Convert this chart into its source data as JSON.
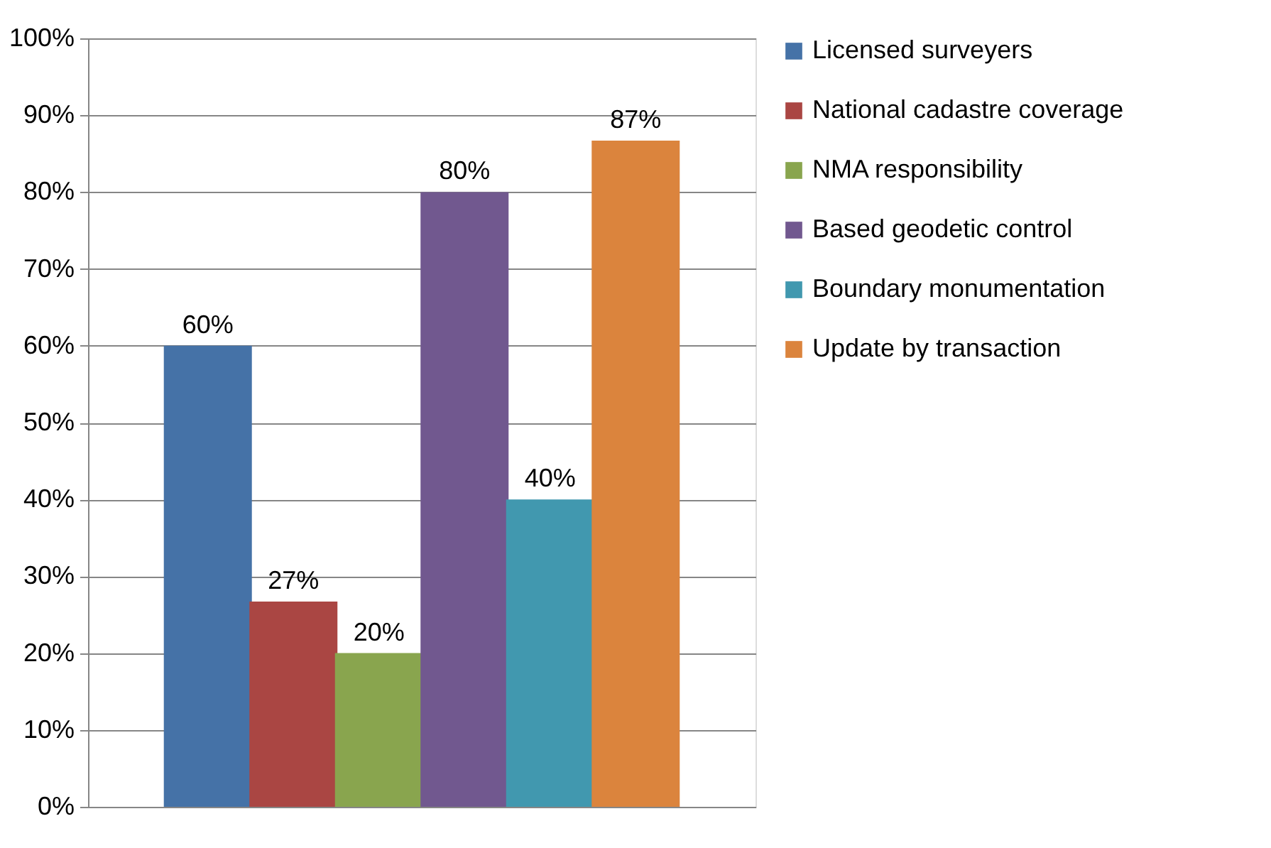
{
  "chart_data": {
    "type": "bar",
    "categories": [
      null
    ],
    "series": [
      {
        "name": "Licensed surveyers",
        "color": "#4572a7",
        "values": [
          60
        ],
        "value_labels": [
          "60%"
        ]
      },
      {
        "name": "National cadastre coverage",
        "color": "#aa4643",
        "values": [
          26.7
        ],
        "value_labels": [
          "27%"
        ]
      },
      {
        "name": "NMA responsibility",
        "color": "#89a54e",
        "values": [
          20
        ],
        "value_labels": [
          "20%"
        ]
      },
      {
        "name": "Based geodetic control",
        "color": "#71588f",
        "values": [
          80
        ],
        "value_labels": [
          "80%"
        ]
      },
      {
        "name": "Boundary monumentation",
        "color": "#4198af",
        "values": [
          40
        ],
        "value_labels": [
          "40%"
        ]
      },
      {
        "name": "Update by transaction",
        "color": "#db843d",
        "values": [
          86.7
        ],
        "value_labels": [
          "87%"
        ]
      }
    ],
    "ylim": [
      0,
      100
    ],
    "yticks": [
      {
        "value": 0,
        "label": "0%"
      },
      {
        "value": 10,
        "label": "10%"
      },
      {
        "value": 20,
        "label": "20%"
      },
      {
        "value": 30,
        "label": "30%"
      },
      {
        "value": 40,
        "label": "40%"
      },
      {
        "value": 50,
        "label": "50%"
      },
      {
        "value": 60,
        "label": "60%"
      },
      {
        "value": 70,
        "label": "70%"
      },
      {
        "value": 80,
        "label": "80%"
      },
      {
        "value": 90,
        "label": "90%"
      },
      {
        "value": 100,
        "label": "100%"
      }
    ],
    "grid": "y",
    "legend": "right",
    "tick_labels": "y"
  }
}
